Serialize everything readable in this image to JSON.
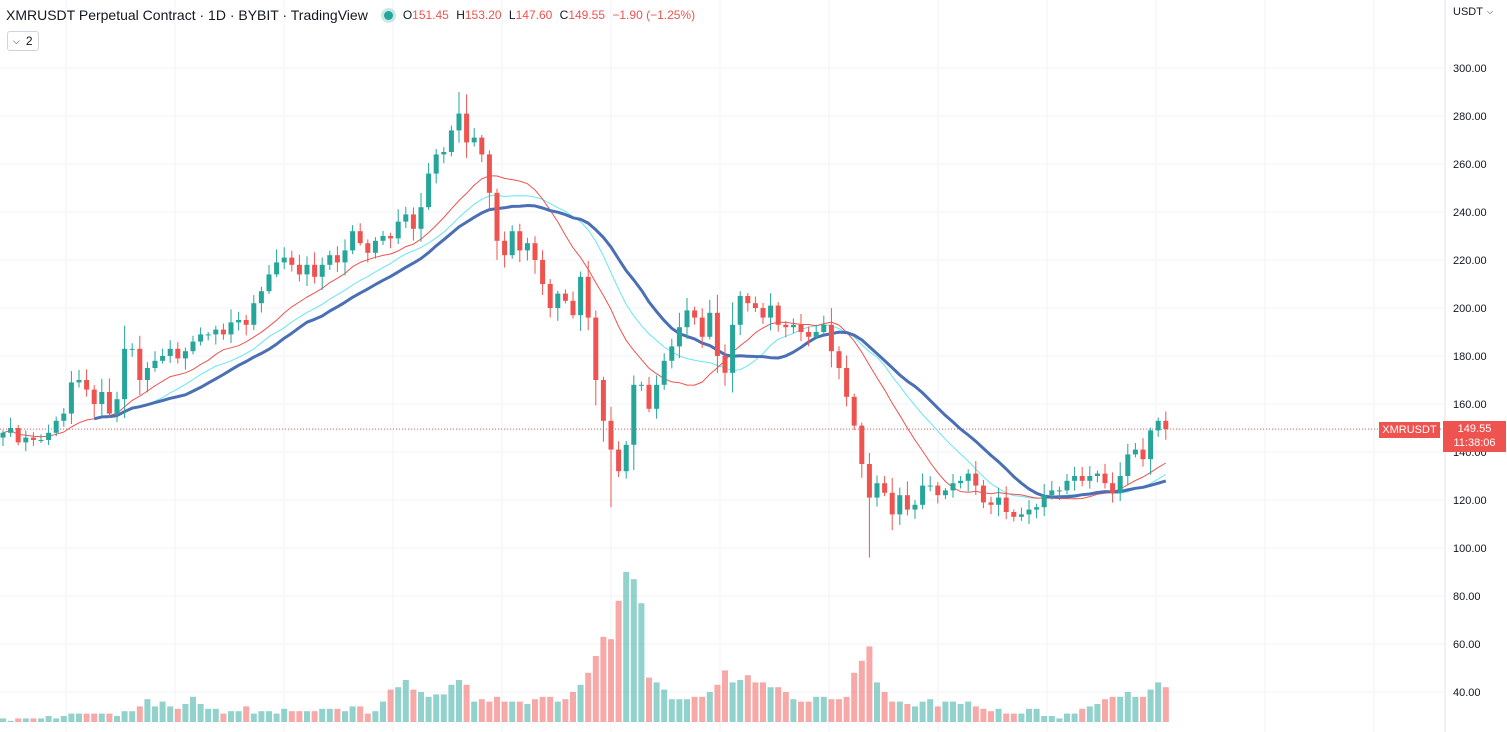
{
  "legend": {
    "symbol": "XMRUSDT Perpetual Contract · 1D · BYBIT · TradingView",
    "open_label": "O",
    "open": "151.45",
    "high_label": "H",
    "high": "153.20",
    "low_label": "L",
    "low": "147.60",
    "close_label": "C",
    "close": "149.55",
    "change": "−1.90 (−1.25%)",
    "indicators_count": "2"
  },
  "axis": {
    "currency": "USDT"
  },
  "last_price": {
    "symbol_tag": "XMRUSDT",
    "value": "149.55",
    "countdown": "11:38:06"
  },
  "colors": {
    "up": "#26a69a",
    "down": "#ef5350",
    "ma_fast": "#ef5350",
    "ma_slow": "#4a6fb5",
    "ma_cyan": "#67e5f5"
  },
  "chart_data": {
    "type": "candlestick",
    "title": "XMRUSDT Perpetual Contract · 1D · BYBIT",
    "y_ticks": [
      "300.00",
      "280.00",
      "260.00",
      "240.00",
      "220.00",
      "200.00",
      "180.00",
      "160.00",
      "140.00",
      "120.00",
      "100.00",
      "80.00",
      "60.00",
      "40.00"
    ],
    "ylim": [
      30,
      320
    ],
    "last_close": 149.55,
    "closes": [
      148,
      150,
      144,
      146,
      145,
      145,
      148,
      153,
      156,
      169,
      170,
      166,
      160,
      165,
      156,
      162,
      183,
      183,
      170,
      175,
      178,
      180,
      183,
      179,
      182,
      186,
      189,
      189,
      191,
      189,
      194,
      195,
      193,
      202,
      207,
      214,
      219,
      221,
      218,
      214,
      218,
      213,
      218,
      222,
      219,
      224,
      232,
      227,
      223,
      228,
      230,
      229,
      236,
      239,
      233,
      242,
      256,
      264,
      265,
      274,
      281,
      269,
      271,
      264,
      248,
      228,
      222,
      232,
      224,
      227,
      220,
      210,
      200,
      206,
      203,
      197,
      213,
      196,
      170,
      153,
      141,
      132,
      143,
      168,
      168,
      158,
      168,
      178,
      184,
      192,
      199,
      196,
      188,
      198,
      180,
      173,
      193,
      205,
      202,
      200,
      196,
      201,
      193,
      192,
      193,
      190,
      188,
      190,
      193,
      182,
      175,
      163,
      151,
      135,
      121,
      127,
      123,
      114,
      122,
      116,
      118,
      126,
      126,
      122,
      124,
      127,
      128,
      131,
      126,
      119,
      118,
      121,
      115,
      113,
      114,
      116,
      117,
      122,
      124,
      124,
      128,
      130,
      128,
      130,
      131,
      127,
      123,
      130,
      139,
      141,
      137,
      149,
      153,
      149.55
    ],
    "volume": [
      29,
      28,
      29,
      29,
      29,
      29,
      30,
      29,
      30,
      31,
      31,
      31,
      31,
      31,
      31,
      30,
      32,
      32,
      34,
      37,
      34,
      36,
      34,
      33,
      35,
      38,
      35,
      33,
      33,
      31,
      32,
      32,
      34,
      31,
      32,
      32,
      31,
      33,
      32,
      32,
      32,
      32,
      33,
      33,
      33,
      32,
      34,
      34,
      31,
      32,
      36,
      41,
      42,
      45,
      41,
      40,
      38,
      39,
      39,
      43,
      45,
      43,
      36,
      37,
      36,
      38,
      36,
      36,
      36,
      35,
      37,
      38,
      38,
      36,
      37,
      40,
      43,
      48,
      55,
      63,
      62,
      78,
      90,
      87,
      77,
      46,
      44,
      41,
      37,
      37,
      37,
      38,
      38,
      40,
      43,
      49,
      44,
      45,
      47,
      44,
      44,
      42,
      42,
      40,
      37,
      36,
      36,
      38,
      38,
      37,
      37,
      38,
      48,
      53,
      59,
      44,
      40,
      36,
      36,
      35,
      34,
      36,
      37,
      34,
      36,
      36,
      35,
      36,
      34,
      33,
      32,
      33,
      31,
      31,
      31,
      33,
      33,
      30,
      30,
      29,
      31,
      31,
      33,
      34,
      35,
      37,
      38,
      38,
      40,
      38,
      38,
      41,
      44,
      42
    ]
  }
}
